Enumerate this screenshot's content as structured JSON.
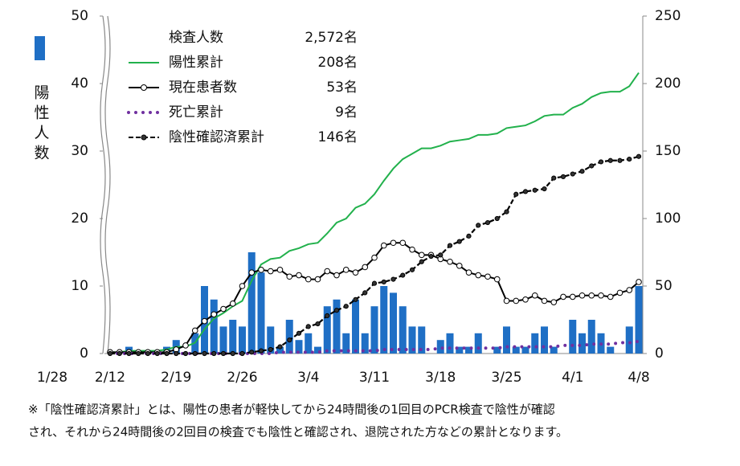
{
  "chart_data": {
    "type": "bar_line",
    "y_title": "陽性人数",
    "break_label": "1/28",
    "categories": [
      "2/12",
      null,
      null,
      null,
      null,
      null,
      null,
      "2/19",
      null,
      null,
      null,
      null,
      null,
      null,
      "2/26",
      null,
      null,
      null,
      null,
      null,
      null,
      "3/4",
      null,
      null,
      null,
      null,
      null,
      null,
      "3/11",
      null,
      null,
      null,
      null,
      null,
      null,
      "3/18",
      null,
      null,
      null,
      null,
      null,
      null,
      "3/25",
      null,
      null,
      null,
      null,
      null,
      null,
      "4/1",
      null,
      null,
      null,
      null,
      null,
      null,
      "4/8"
    ],
    "ylim": [
      0,
      50
    ],
    "yticks": [
      0,
      10,
      20,
      30,
      40,
      50
    ],
    "y2lim": [
      0,
      250
    ],
    "y2ticks": [
      0,
      50,
      100,
      150,
      200,
      250
    ],
    "bar_color": "#1f6fc5",
    "bars": [
      0,
      0,
      1,
      0,
      0,
      0,
      1,
      2,
      0,
      3,
      10,
      8,
      4,
      5,
      4,
      15,
      12,
      4,
      1,
      5,
      2,
      3,
      1,
      7,
      8,
      3,
      8,
      3,
      7,
      10,
      9,
      7,
      4,
      4,
      0,
      2,
      3,
      1,
      1,
      3,
      0,
      1,
      4,
      1,
      1,
      3,
      4,
      1,
      0,
      5,
      3,
      5,
      3,
      1,
      0,
      4,
      10
    ],
    "tests_label": "検査人数",
    "tests_value": "2,572名",
    "series": [
      {
        "name": "陽性累計",
        "legend_value": "208名",
        "color": "#22b14c",
        "style": "solid",
        "axis": "y2",
        "values": [
          1,
          1,
          2,
          2,
          2,
          2,
          3,
          5,
          5,
          8,
          18,
          26,
          30,
          35,
          39,
          54,
          66,
          70,
          71,
          76,
          78,
          81,
          82,
          89,
          97,
          100,
          108,
          111,
          118,
          128,
          137,
          144,
          148,
          152,
          152,
          154,
          157,
          158,
          159,
          162,
          162,
          163,
          167,
          168,
          169,
          172,
          176,
          177,
          177,
          182,
          185,
          190,
          193,
          194,
          194,
          198,
          208
        ]
      },
      {
        "name": "現在患者数",
        "legend_value": "53名",
        "color": "#000000",
        "style": "open-circle",
        "axis": "y2",
        "values": [
          1,
          1,
          1,
          1,
          1,
          1,
          1,
          3,
          6,
          17,
          24,
          29,
          33,
          37,
          50,
          60,
          62,
          61,
          62,
          57,
          58,
          55,
          55,
          61,
          58,
          62,
          60,
          64,
          71,
          80,
          82,
          82,
          77,
          73,
          73,
          70,
          68,
          65,
          60,
          58,
          57,
          55,
          39,
          39,
          40,
          43,
          39,
          38,
          42,
          42,
          43,
          43,
          43,
          42,
          45,
          47,
          53
        ]
      },
      {
        "name": "死亡累計",
        "legend_value": "9名",
        "color": "#7030a0",
        "style": "dotted",
        "axis": "y2",
        "values": [
          0,
          0,
          0,
          0,
          0,
          0,
          0,
          0,
          0,
          0,
          0,
          0,
          0,
          0,
          0,
          0,
          0,
          0,
          1,
          1,
          1,
          1,
          1,
          2,
          2,
          2,
          2,
          2,
          2,
          3,
          3,
          3,
          3,
          3,
          3,
          4,
          4,
          4,
          4,
          4,
          4,
          4,
          5,
          5,
          5,
          5,
          5,
          5,
          6,
          6,
          6,
          7,
          7,
          7,
          8,
          8,
          9
        ]
      },
      {
        "name": "陰性確認済累計",
        "legend_value": "146名",
        "color": "#000000",
        "style": "dashed-dot",
        "axis": "y2",
        "values": [
          0,
          0,
          0,
          0,
          0,
          0,
          0,
          0,
          0,
          0,
          0,
          0,
          0,
          0,
          0,
          1,
          2,
          3,
          5,
          10,
          15,
          20,
          22,
          28,
          32,
          35,
          40,
          45,
          52,
          53,
          55,
          58,
          62,
          68,
          72,
          73,
          80,
          83,
          87,
          95,
          97,
          100,
          105,
          118,
          120,
          121,
          122,
          130,
          131,
          133,
          135,
          139,
          142,
          143,
          143,
          144,
          146
        ]
      }
    ],
    "note": [
      "※「陰性確認済累計」とは、陽性の患者が軽快してから24時間後の1回目のPCR検査で陰性が確認",
      "され、それから24時間後の2回目の検査でも陰性と確認され、退院された方などの累計となります。"
    ]
  }
}
